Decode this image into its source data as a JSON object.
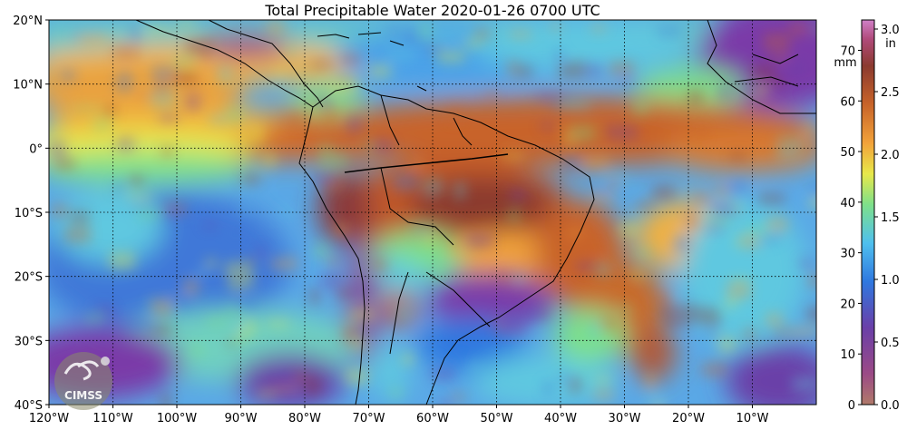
{
  "title": "Total Precipitable Water  2020-01-26 0700 UTC",
  "lat_labels": [
    "20°N",
    "10°N",
    "0°",
    "10°S",
    "20°S",
    "30°S",
    "40°S"
  ],
  "lon_labels": [
    "120°W",
    "110°W",
    "100°W",
    "90°W",
    "80°W",
    "70°W",
    "60°W",
    "50°W",
    "40°W",
    "30°W",
    "20°W",
    "10°W"
  ],
  "colorbar": {
    "mm_unit": "mm",
    "in_unit": "in",
    "mm_ticks": [
      "70",
      "60",
      "50",
      "40",
      "30",
      "20",
      "10",
      "0"
    ],
    "in_ticks": [
      "3.0",
      "2.5",
      "2.0",
      "1.5",
      "1.0",
      "0.5",
      "0.0"
    ]
  },
  "logo_text": "CIMSS",
  "colors": {
    "very_high": "#8b3a2f",
    "high": "#c8642a",
    "moderate_high": "#f2a23a",
    "moderate": "#e8e84a",
    "mid": "#7ee08a",
    "low_mid": "#5fc8e0",
    "low": "#3f78d8",
    "very_low": "#6a3fa8",
    "min": "#9b4a86",
    "gridline": "#000000",
    "coastline": "#000000"
  }
}
